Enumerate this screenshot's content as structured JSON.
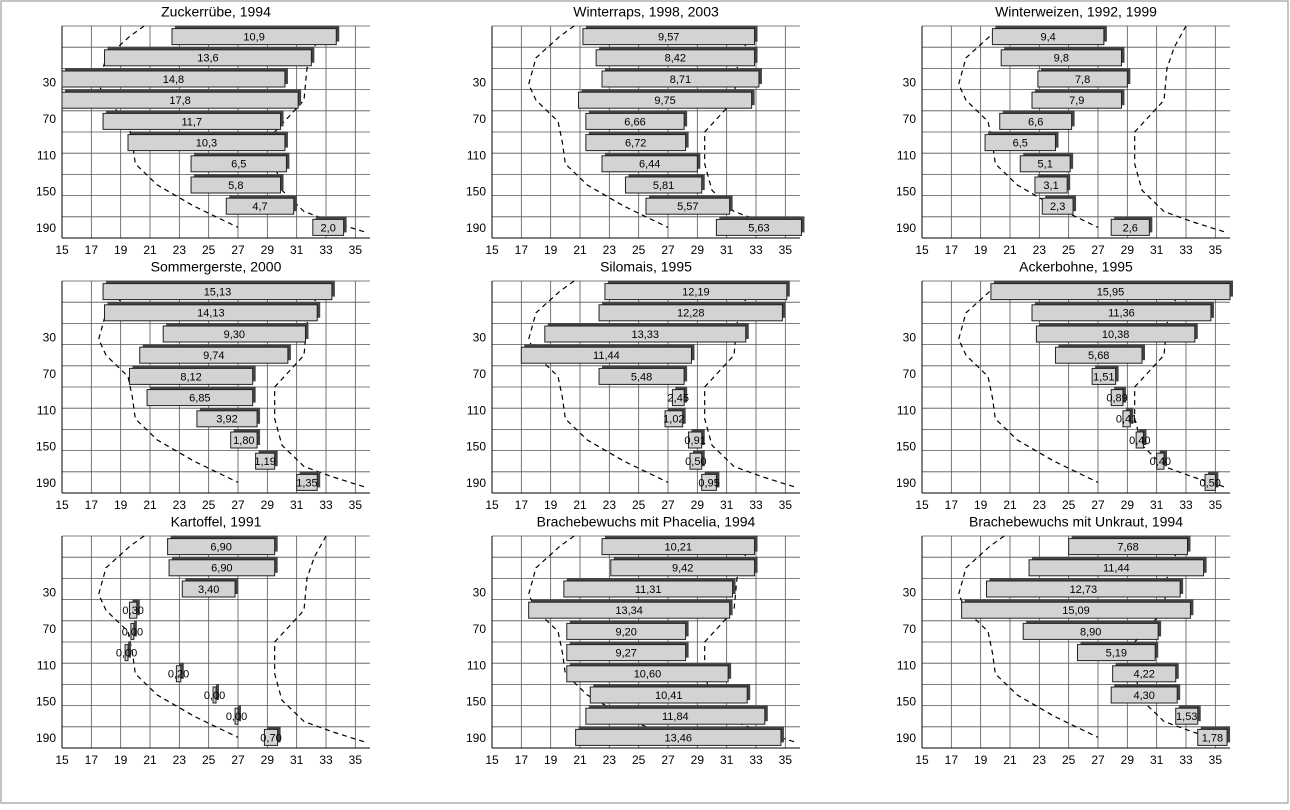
{
  "chart_data": [
    {
      "type": "bar",
      "title": "Zuckerrübe, 1994",
      "depths": [
        10,
        30,
        50,
        70,
        90,
        110,
        130,
        150,
        170,
        190
      ],
      "values": [
        10.9,
        13.6,
        14.8,
        17.8,
        11.7,
        10.3,
        6.5,
        5.8,
        4.7,
        2.0
      ],
      "value_labels": [
        "10,9",
        "13,6",
        "14,8",
        "17,8",
        "11,7",
        "10,3",
        "6,5",
        "5,8",
        "4,7",
        "2,0"
      ],
      "ranges": [
        [
          22.5,
          33.7
        ],
        [
          17.9,
          32
        ],
        [
          15,
          30.2
        ],
        [
          15,
          31.1
        ],
        [
          17.8,
          29.9
        ],
        [
          19.5,
          30.2
        ],
        [
          23.8,
          30.3
        ],
        [
          23.8,
          29.9
        ],
        [
          26.2,
          30.8
        ],
        [
          32.1,
          34.2
        ]
      ],
      "xlim": [
        15,
        36
      ],
      "xticks": [
        15,
        17,
        19,
        21,
        23,
        25,
        27,
        29,
        31,
        33,
        35
      ],
      "ylim": [
        0,
        200
      ],
      "yticks": [
        30,
        70,
        110,
        150,
        190
      ]
    },
    {
      "type": "bar",
      "title": "Winterraps, 1998, 2003",
      "depths": [
        10,
        30,
        50,
        70,
        90,
        110,
        130,
        150,
        170,
        190
      ],
      "values": [
        9.57,
        8.42,
        8.71,
        9.75,
        6.66,
        6.72,
        6.44,
        5.81,
        5.57,
        5.63
      ],
      "value_labels": [
        "9,57",
        "8,42",
        "8,71",
        "9,75",
        "6,66",
        "6,72",
        "6,44",
        "5,81",
        "5,57",
        "5,63"
      ],
      "ranges": [
        [
          21.2,
          32.9
        ],
        [
          22.1,
          32.9
        ],
        [
          22.5,
          33.2
        ],
        [
          20.9,
          32.7
        ],
        [
          21.4,
          28.1
        ],
        [
          21.4,
          28.2
        ],
        [
          22.5,
          29
        ],
        [
          24.1,
          29.3
        ],
        [
          25.5,
          31.2
        ],
        [
          30.3,
          36.1
        ]
      ],
      "xlim": [
        15,
        36
      ],
      "xticks": [
        15,
        17,
        19,
        21,
        23,
        25,
        27,
        29,
        31,
        33,
        35
      ],
      "ylim": [
        0,
        200
      ],
      "yticks": [
        30,
        70,
        110,
        150,
        190
      ]
    },
    {
      "type": "bar",
      "title": "Winterweizen, 1992, 1999",
      "depths": [
        10,
        30,
        50,
        70,
        90,
        110,
        130,
        150,
        170,
        190
      ],
      "values": [
        9.4,
        9.8,
        7.8,
        7.9,
        6.6,
        6.5,
        5.1,
        3.1,
        2.3,
        2.6
      ],
      "value_labels": [
        "9,4",
        "9,8",
        "7,8",
        "7,9",
        "6,6",
        "6,5",
        "5,1",
        "3,1",
        "2,3",
        "2,6"
      ],
      "ranges": [
        [
          19.8,
          27.4
        ],
        [
          20.4,
          28.6
        ],
        [
          22.9,
          29
        ],
        [
          22.5,
          28.6
        ],
        [
          20.3,
          25.2
        ],
        [
          19.3,
          24.1
        ],
        [
          21.7,
          25.1
        ],
        [
          22.7,
          24.9
        ],
        [
          23.2,
          25.3
        ],
        [
          27.9,
          30.5
        ]
      ],
      "xlim": [
        15,
        36
      ],
      "xticks": [
        15,
        17,
        19,
        21,
        23,
        25,
        27,
        29,
        31,
        33,
        35
      ],
      "ylim": [
        0,
        200
      ],
      "yticks": [
        30,
        70,
        110,
        150,
        190
      ]
    },
    {
      "type": "bar",
      "title": "Sommergerste, 2000",
      "depths": [
        10,
        30,
        50,
        70,
        90,
        110,
        130,
        150,
        170,
        190
      ],
      "values": [
        15.13,
        14.13,
        9.3,
        9.74,
        8.12,
        6.85,
        3.92,
        1.8,
        1.19,
        1.35
      ],
      "value_labels": [
        "15,13",
        "14,13",
        "9,30",
        "9,74",
        "8,12",
        "6,85",
        "3,92",
        "1,80",
        "1,19",
        "1,35"
      ],
      "ranges": [
        [
          17.8,
          33.4
        ],
        [
          17.9,
          32.4
        ],
        [
          21.9,
          31.6
        ],
        [
          20.3,
          30.4
        ],
        [
          19.6,
          28
        ],
        [
          20.8,
          28
        ],
        [
          24.2,
          28.3
        ],
        [
          26.5,
          28.3
        ],
        [
          28.2,
          29.5
        ],
        [
          31,
          32.4
        ]
      ],
      "xlim": [
        15,
        36
      ],
      "xticks": [
        15,
        17,
        19,
        21,
        23,
        25,
        27,
        29,
        31,
        33,
        35
      ],
      "ylim": [
        0,
        200
      ],
      "yticks": [
        30,
        70,
        110,
        150,
        190
      ]
    },
    {
      "type": "bar",
      "title": "Silomais, 1995",
      "depths": [
        10,
        30,
        50,
        70,
        90,
        110,
        130,
        150,
        170,
        190
      ],
      "values": [
        12.19,
        12.28,
        13.33,
        11.44,
        5.48,
        2.45,
        1.02,
        0.91,
        0.5,
        0.95
      ],
      "value_labels": [
        "12,19",
        "12,28",
        "13,33",
        "11,44",
        "5,48",
        "2,45",
        "1,02",
        "0,91",
        "0,50",
        "0,95"
      ],
      "ranges": [
        [
          22.7,
          35.1
        ],
        [
          22.3,
          34.8
        ],
        [
          18.6,
          32.3
        ],
        [
          17,
          28.6
        ],
        [
          22.3,
          28.1
        ],
        [
          27.3,
          28.1
        ],
        [
          26.8,
          28
        ],
        [
          28.4,
          29.3
        ],
        [
          28.5,
          29.3
        ],
        [
          29.3,
          30.3
        ]
      ],
      "xlim": [
        15,
        36
      ],
      "xticks": [
        15,
        17,
        19,
        21,
        23,
        25,
        27,
        29,
        31,
        33,
        35
      ],
      "ylim": [
        0,
        200
      ],
      "yticks": [
        30,
        70,
        110,
        150,
        190
      ]
    },
    {
      "type": "bar",
      "title": "Ackerbohne, 1995",
      "depths": [
        10,
        30,
        50,
        70,
        90,
        110,
        130,
        150,
        170,
        190
      ],
      "values": [
        15.95,
        11.36,
        10.38,
        5.68,
        1.51,
        0.89,
        0.41,
        0.4,
        0.4,
        0.5
      ],
      "value_labels": [
        "15,95",
        "11,36",
        "10,38",
        "5,68",
        "1,51",
        "0,89",
        "0,41",
        "0,40",
        "0,40",
        "0,50"
      ],
      "ranges": [
        [
          19.7,
          36
        ],
        [
          22.5,
          34.7
        ],
        [
          22.8,
          33.6
        ],
        [
          24.1,
          30
        ],
        [
          26.6,
          28.2
        ],
        [
          27.9,
          28.7
        ],
        [
          28.7,
          29.2
        ],
        [
          29.6,
          30.1
        ],
        [
          31,
          31.5
        ],
        [
          34.3,
          35
        ]
      ],
      "xlim": [
        15,
        36
      ],
      "xticks": [
        15,
        17,
        19,
        21,
        23,
        25,
        27,
        29,
        31,
        33,
        35
      ],
      "ylim": [
        0,
        200
      ],
      "yticks": [
        30,
        70,
        110,
        150,
        190
      ]
    },
    {
      "type": "bar",
      "title": "Kartoffel, 1991",
      "depths": [
        10,
        30,
        50,
        70,
        90,
        110,
        130,
        150,
        170,
        190
      ],
      "values": [
        6.9,
        6.9,
        3.4,
        0.3,
        0.0,
        0.0,
        0.2,
        0.0,
        0.0,
        0.7
      ],
      "value_labels": [
        "6,90",
        "6,90",
        "3,40",
        "0,30",
        "0,00",
        "0,00",
        "0,20",
        "0,00",
        "0,00",
        "0,70"
      ],
      "ranges": [
        [
          22.2,
          29.5
        ],
        [
          22.3,
          29.5
        ],
        [
          23.2,
          26.8
        ],
        [
          19.6,
          20.1
        ],
        [
          19.7,
          19.9
        ],
        [
          19.3,
          19.5
        ],
        [
          22.8,
          23.1
        ],
        [
          25.3,
          25.5
        ],
        [
          26.8,
          27
        ],
        [
          28.8,
          29.7
        ]
      ],
      "xlim": [
        15,
        36
      ],
      "xticks": [
        15,
        17,
        19,
        21,
        23,
        25,
        27,
        29,
        31,
        33,
        35
      ],
      "ylim": [
        0,
        200
      ],
      "yticks": [
        30,
        70,
        110,
        150,
        190
      ]
    },
    {
      "type": "bar",
      "title": "Brachebewuchs mit Phacelia, 1994",
      "depths": [
        10,
        30,
        50,
        70,
        90,
        110,
        130,
        150,
        170,
        190
      ],
      "values": [
        10.21,
        9.42,
        11.31,
        13.34,
        9.2,
        9.27,
        10.6,
        10.41,
        11.84,
        13.46
      ],
      "value_labels": [
        "10,21",
        "9,42",
        "11,31",
        "13,34",
        "9,20",
        "9,27",
        "10,60",
        "10,41",
        "11,84",
        "13,46"
      ],
      "ranges": [
        [
          22.5,
          32.9
        ],
        [
          23.1,
          32.9
        ],
        [
          19.9,
          31.4
        ],
        [
          17.5,
          31.2
        ],
        [
          20.1,
          28.2
        ],
        [
          20.1,
          28.2
        ],
        [
          20.1,
          31.1
        ],
        [
          21.7,
          32.4
        ],
        [
          21.4,
          33.6
        ],
        [
          20.7,
          34.7
        ]
      ],
      "xlim": [
        15,
        36
      ],
      "xticks": [
        15,
        17,
        19,
        21,
        23,
        25,
        27,
        29,
        31,
        33,
        35
      ],
      "ylim": [
        0,
        200
      ],
      "yticks": [
        30,
        70,
        110,
        150,
        190
      ]
    },
    {
      "type": "bar",
      "title": "Brachebewuchs mit Unkraut, 1994",
      "depths": [
        10,
        30,
        50,
        70,
        90,
        110,
        130,
        150,
        170,
        190
      ],
      "values": [
        7.68,
        11.44,
        12.73,
        15.09,
        8.9,
        5.19,
        4.22,
        4.3,
        1.53,
        1.78
      ],
      "value_labels": [
        "7,68",
        "11,44",
        "12,73",
        "15,09",
        "8,90",
        "5,19",
        "4,22",
        "4,30",
        "1,53",
        "1,78"
      ],
      "ranges": [
        [
          25,
          33.1
        ],
        [
          22.3,
          34.2
        ],
        [
          19.4,
          32.6
        ],
        [
          17.7,
          33.3
        ],
        [
          21.9,
          31.1
        ],
        [
          25.6,
          30.9
        ],
        [
          28,
          32.3
        ],
        [
          27.9,
          32.4
        ],
        [
          32.3,
          33.8
        ],
        [
          33.8,
          35.8
        ]
      ],
      "xlim": [
        15,
        36
      ],
      "xticks": [
        15,
        17,
        19,
        21,
        23,
        25,
        27,
        29,
        31,
        33,
        35
      ],
      "ylim": [
        0,
        200
      ],
      "yticks": [
        30,
        70,
        110,
        150,
        190
      ]
    }
  ],
  "envelope": {
    "left": {
      "x": [
        20.6,
        19.6,
        18,
        17.5,
        18,
        19.5,
        19.8,
        20,
        21.5,
        24,
        27
      ],
      "y": [
        0,
        10,
        30,
        55,
        70,
        90,
        110,
        130,
        150,
        170,
        190
      ]
    },
    "right": {
      "x": [
        33,
        32.2,
        31.7,
        31.5,
        30.5,
        29.5,
        29.5,
        30,
        31.5,
        33.5,
        35.8
      ],
      "y": [
        0,
        20,
        40,
        70,
        85,
        100,
        130,
        155,
        175,
        185,
        195
      ]
    }
  }
}
